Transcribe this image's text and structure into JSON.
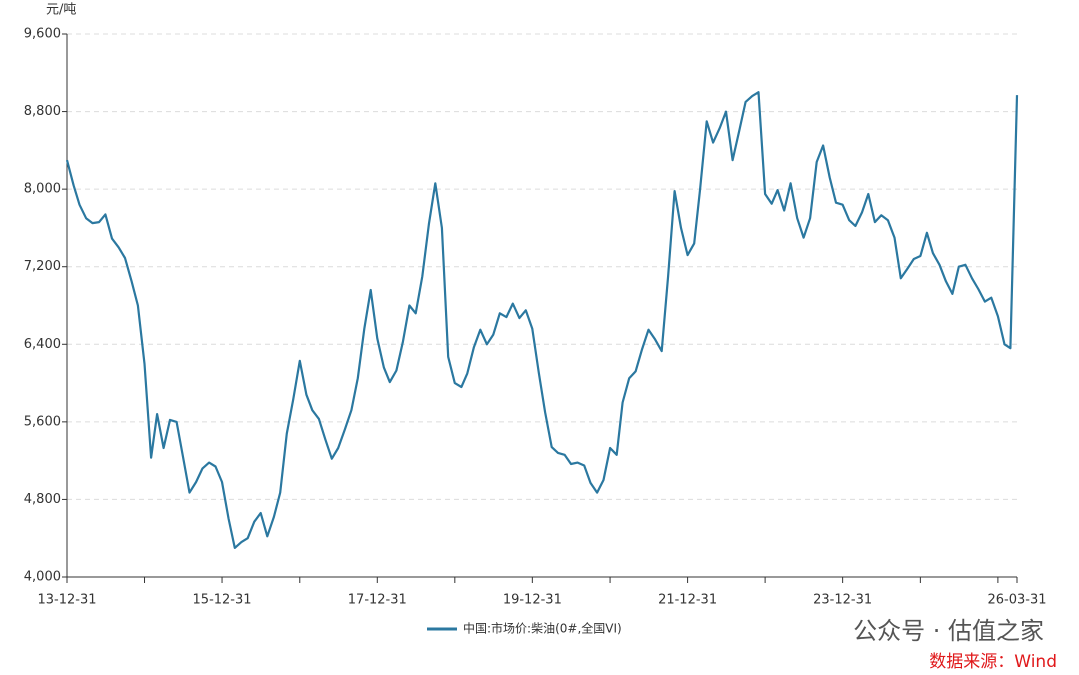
{
  "chart_data": {
    "type": "line",
    "y_unit": "元/吨",
    "x": [
      "2013-12",
      "2014-01",
      "2014-02",
      "2014-03",
      "2014-04",
      "2014-05",
      "2014-06",
      "2014-07",
      "2014-08",
      "2014-09",
      "2014-10",
      "2014-11",
      "2014-12",
      "2015-01",
      "2015-02",
      "2015-03",
      "2015-04",
      "2015-05",
      "2015-06",
      "2015-07",
      "2015-08",
      "2015-09",
      "2015-10",
      "2015-11",
      "2015-12",
      "2016-01",
      "2016-02",
      "2016-03",
      "2016-04",
      "2016-05",
      "2016-06",
      "2016-07",
      "2016-08",
      "2016-09",
      "2016-10",
      "2016-11",
      "2016-12",
      "2017-01",
      "2017-02",
      "2017-03",
      "2017-04",
      "2017-05",
      "2017-06",
      "2017-07",
      "2017-08",
      "2017-09",
      "2017-10",
      "2017-11",
      "2017-12",
      "2018-01",
      "2018-02",
      "2018-03",
      "2018-04",
      "2018-05",
      "2018-06",
      "2018-07",
      "2018-08",
      "2018-09",
      "2018-10",
      "2018-11",
      "2018-12",
      "2019-01",
      "2019-02",
      "2019-03",
      "2019-04",
      "2019-05",
      "2019-06",
      "2019-07",
      "2019-08",
      "2019-09",
      "2019-10",
      "2019-11",
      "2019-12",
      "2020-01",
      "2020-02",
      "2020-03",
      "2020-04",
      "2020-05",
      "2020-06",
      "2020-07",
      "2020-08",
      "2020-09",
      "2020-10",
      "2020-11",
      "2020-12",
      "2021-01",
      "2021-02",
      "2021-03",
      "2021-04",
      "2021-05",
      "2021-06",
      "2021-07",
      "2021-08",
      "2021-09",
      "2021-10",
      "2021-11",
      "2021-12",
      "2022-01",
      "2022-02",
      "2022-03",
      "2022-04",
      "2022-05",
      "2022-06",
      "2022-07",
      "2022-08",
      "2022-09",
      "2022-10",
      "2022-11",
      "2022-12",
      "2023-01",
      "2023-02",
      "2023-03",
      "2023-04",
      "2023-05",
      "2023-06",
      "2023-07",
      "2023-08",
      "2023-09",
      "2023-10",
      "2023-11",
      "2023-12",
      "2024-01",
      "2024-02",
      "2024-03",
      "2024-04",
      "2024-05",
      "2024-06",
      "2024-07",
      "2024-08",
      "2024-09",
      "2024-10",
      "2024-11",
      "2024-12",
      "2025-01",
      "2025-02",
      "2025-03",
      "2025-04",
      "2025-05",
      "2025-06",
      "2025-07",
      "2025-08",
      "2025-09",
      "2025-10",
      "2025-11",
      "2025-12",
      "2026-01",
      "2026-02",
      "2026-03"
    ],
    "series": [
      {
        "name": "中国:市场价:柴油(0#,全国VI)",
        "color": "#2b78a0",
        "values": [
          8300,
          8040,
          7840,
          7700,
          7650,
          7660,
          7740,
          7490,
          7400,
          7290,
          7050,
          6800,
          6200,
          5230,
          5680,
          5330,
          5620,
          5600,
          5240,
          4870,
          4980,
          5120,
          5180,
          5140,
          4980,
          4600,
          4300,
          4360,
          4400,
          4570,
          4660,
          4420,
          4620,
          4870,
          5480,
          5830,
          6230,
          5880,
          5720,
          5630,
          5420,
          5220,
          5330,
          5520,
          5720,
          6050,
          6560,
          6960,
          6460,
          6160,
          6010,
          6130,
          6420,
          6800,
          6720,
          7100,
          7640,
          8060,
          7600,
          6270,
          6000,
          5960,
          6100,
          6370,
          6550,
          6400,
          6500,
          6720,
          6680,
          6820,
          6670,
          6750,
          6560,
          6100,
          5700,
          5340,
          5280,
          5260,
          5165,
          5180,
          5150,
          4970,
          4870,
          5000,
          5330,
          5260,
          5800,
          6050,
          6120,
          6350,
          6550,
          6450,
          6330,
          7100,
          7980,
          7600,
          7320,
          7440,
          8000,
          8700,
          8480,
          8630,
          8800,
          8300,
          8600,
          8900,
          8960,
          9000,
          7950,
          7850,
          7990,
          7780,
          8060,
          7700,
          7500,
          7700,
          8280,
          8450,
          8120,
          7860,
          7840,
          7680,
          7620,
          7760,
          7950,
          7660,
          7730,
          7680,
          7500,
          7080,
          7180,
          7280,
          7310,
          7550,
          7340,
          7220,
          7050,
          6920,
          7200,
          7220,
          7080,
          6970,
          6840,
          6880,
          6690,
          6400,
          6360,
          8970
        ]
      }
    ],
    "xlim": [
      "2013-12-31",
      "2026-03-31"
    ],
    "xticks": [
      {
        "value": "2013-12-31",
        "label": "13-12-31"
      },
      {
        "value": "2015-12-31",
        "label": "15-12-31"
      },
      {
        "value": "2017-12-31",
        "label": "17-12-31"
      },
      {
        "value": "2019-12-31",
        "label": "19-12-31"
      },
      {
        "value": "2021-12-31",
        "label": "21-12-31"
      },
      {
        "value": "2023-12-31",
        "label": "23-12-31"
      },
      {
        "value": "2026-03-31",
        "label": "26-03-31"
      }
    ],
    "xminorticks": [
      "2014-12-31",
      "2016-12-31",
      "2018-12-31",
      "2020-12-31",
      "2022-12-31",
      "2024-12-31",
      "2025-12-31"
    ],
    "ylim": [
      4000,
      9600
    ],
    "yticks": [
      {
        "value": 4000,
        "label": "4,000"
      },
      {
        "value": 4800,
        "label": "4,800"
      },
      {
        "value": 5600,
        "label": "5,600"
      },
      {
        "value": 6400,
        "label": "6,400"
      },
      {
        "value": 7200,
        "label": "7,200"
      },
      {
        "value": 8000,
        "label": "8,000"
      },
      {
        "value": 8800,
        "label": "8,800"
      },
      {
        "value": 9600,
        "label": "9,600"
      }
    ],
    "grid": true,
    "legend": "bottom"
  },
  "watermark": "公众号 · 估值之家",
  "source": "数据来源：Wind"
}
